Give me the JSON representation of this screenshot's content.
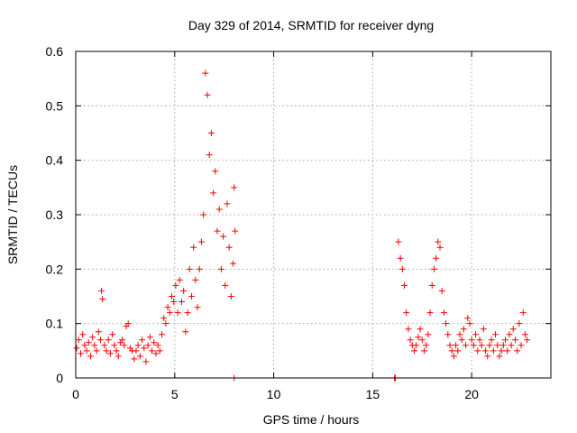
{
  "chart_data": {
    "type": "scatter",
    "title": "Day 329 of 2014, SRMTID for receiver dyng",
    "xlabel": "GPS time / hours",
    "ylabel": "SRMTID / TECUs",
    "xlim": [
      0,
      24
    ],
    "ylim": [
      0,
      0.6
    ],
    "xticks": [
      0,
      5,
      10,
      15,
      20
    ],
    "yticks": [
      0,
      0.1,
      0.2,
      0.3,
      0.4,
      0.5,
      0.6
    ],
    "xtick_labels": [
      "0",
      "5",
      "10",
      "15",
      "20"
    ],
    "ytick_labels": [
      "0",
      "0.1",
      "0.2",
      "0.3",
      "0.4",
      "0.5",
      "0.6"
    ],
    "grid": true,
    "marker": "+",
    "color": "#ff0000",
    "series": [
      {
        "name": "SRMTID",
        "x": [
          0.05,
          0.15,
          0.25,
          0.35,
          0.45,
          0.55,
          0.65,
          0.75,
          0.85,
          0.95,
          1.05,
          1.15,
          1.25,
          1.3,
          1.35,
          1.45,
          1.55,
          1.65,
          1.75,
          1.85,
          1.95,
          2.05,
          2.15,
          2.25,
          2.35,
          2.45,
          2.55,
          2.65,
          2.75,
          2.85,
          2.95,
          3.05,
          3.15,
          3.25,
          3.35,
          3.45,
          3.55,
          3.65,
          3.75,
          3.85,
          3.95,
          4.05,
          4.15,
          4.25,
          4.35,
          4.45,
          4.55,
          4.65,
          4.75,
          4.85,
          4.95,
          5.05,
          5.15,
          5.25,
          5.35,
          5.45,
          5.55,
          5.65,
          5.75,
          5.85,
          5.95,
          6.05,
          6.15,
          6.25,
          6.35,
          6.45,
          6.55,
          6.65,
          6.75,
          6.85,
          6.95,
          7.05,
          7.15,
          7.25,
          7.35,
          7.45,
          7.55,
          7.65,
          7.75,
          7.85,
          7.95,
          8.05,
          8.0,
          8.0,
          16.1,
          16.15,
          16.3,
          16.4,
          16.5,
          16.6,
          16.7,
          16.8,
          16.9,
          17.0,
          17.1,
          17.2,
          17.3,
          17.4,
          17.5,
          17.6,
          17.7,
          17.8,
          17.9,
          18.0,
          18.1,
          18.2,
          18.3,
          18.4,
          18.5,
          18.6,
          18.7,
          18.8,
          18.9,
          19.0,
          19.1,
          19.2,
          19.3,
          19.4,
          19.5,
          19.6,
          19.7,
          19.8,
          19.9,
          20.0,
          20.1,
          20.2,
          20.3,
          20.4,
          20.5,
          20.6,
          20.7,
          20.8,
          20.9,
          21.0,
          21.1,
          21.2,
          21.3,
          21.4,
          21.5,
          21.6,
          21.7,
          21.8,
          21.9,
          22.0,
          22.1,
          22.2,
          22.3,
          22.4,
          22.5,
          22.6,
          22.7,
          22.8
        ],
        "y": [
          0.055,
          0.07,
          0.045,
          0.08,
          0.06,
          0.05,
          0.065,
          0.04,
          0.075,
          0.06,
          0.05,
          0.085,
          0.07,
          0.16,
          0.145,
          0.06,
          0.05,
          0.07,
          0.045,
          0.08,
          0.06,
          0.05,
          0.04,
          0.065,
          0.07,
          0.06,
          0.095,
          0.1,
          0.055,
          0.05,
          0.035,
          0.05,
          0.06,
          0.04,
          0.07,
          0.055,
          0.03,
          0.06,
          0.075,
          0.05,
          0.065,
          0.045,
          0.06,
          0.05,
          0.08,
          0.11,
          0.1,
          0.13,
          0.12,
          0.15,
          0.14,
          0.17,
          0.12,
          0.18,
          0.14,
          0.16,
          0.085,
          0.12,
          0.2,
          0.15,
          0.24,
          0.18,
          0.13,
          0.2,
          0.25,
          0.3,
          0.56,
          0.52,
          0.41,
          0.45,
          0.34,
          0.38,
          0.27,
          0.31,
          0.2,
          0.26,
          0.17,
          0.32,
          0.24,
          0.15,
          0.21,
          0.27,
          0.35,
          0.0,
          0.0,
          0.0,
          0.25,
          0.22,
          0.2,
          0.17,
          0.12,
          0.09,
          0.07,
          0.06,
          0.05,
          0.06,
          0.075,
          0.09,
          0.07,
          0.05,
          0.06,
          0.08,
          0.12,
          0.17,
          0.2,
          0.22,
          0.25,
          0.24,
          0.16,
          0.12,
          0.1,
          0.08,
          0.06,
          0.05,
          0.04,
          0.06,
          0.05,
          0.08,
          0.07,
          0.09,
          0.06,
          0.11,
          0.1,
          0.07,
          0.06,
          0.08,
          0.05,
          0.07,
          0.06,
          0.09,
          0.05,
          0.04,
          0.06,
          0.07,
          0.05,
          0.08,
          0.06,
          0.04,
          0.05,
          0.06,
          0.07,
          0.05,
          0.08,
          0.06,
          0.09,
          0.07,
          0.05,
          0.1,
          0.06,
          0.12,
          0.08,
          0.07
        ]
      }
    ]
  }
}
